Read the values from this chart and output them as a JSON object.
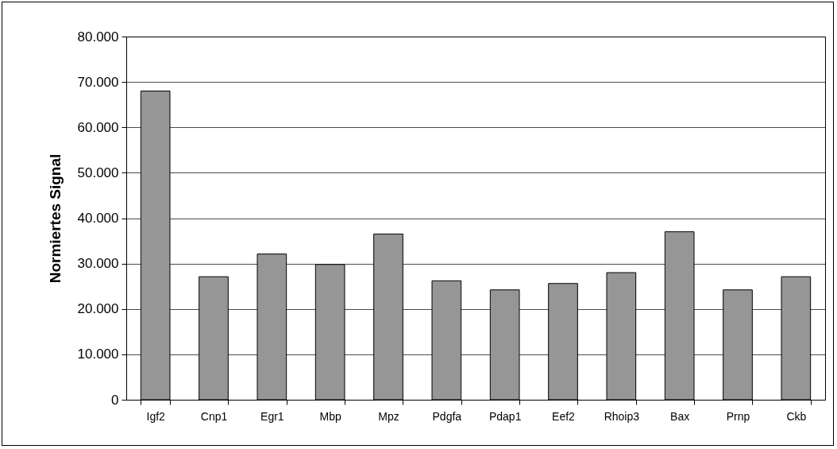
{
  "chart_data": {
    "type": "bar",
    "ylabel": "Normiertes Signal",
    "categories": [
      "Igf2",
      "Cnp1",
      "Egr1",
      "Mbp",
      "Mpz",
      "Pdgfa",
      "Pdap1",
      "Eef2",
      "Rhoip3",
      "Bax",
      "Prnp",
      "Ckb"
    ],
    "values": [
      68000,
      27100,
      32100,
      29800,
      36500,
      26200,
      24200,
      25600,
      28000,
      37000,
      24200,
      27100
    ],
    "color": "#969696",
    "ylim": [
      0,
      80000
    ],
    "yticks": [
      0,
      {
        "value": 10000,
        "label": "10.000"
      },
      {
        "value": 20000,
        "label": "20.000"
      },
      {
        "value": 30000,
        "label": "30.000"
      },
      {
        "value": 40000,
        "label": "40.000"
      },
      {
        "value": 50000,
        "label": "50.000"
      },
      {
        "value": 60000,
        "label": "60.000"
      },
      {
        "value": 70000,
        "label": "70.000"
      },
      {
        "value": 80000,
        "label": "80.000"
      }
    ],
    "grid": "y"
  }
}
